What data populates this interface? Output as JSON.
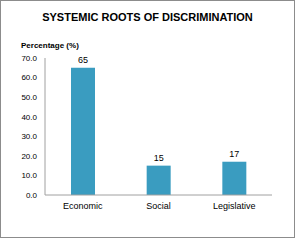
{
  "chart_data": {
    "type": "bar",
    "title": "SYSTEMIC ROOTS OF DISCRIMINATION",
    "y_label": "Percentage (%)",
    "categories": [
      "Economic",
      "Social",
      "Legislative"
    ],
    "values": [
      65,
      15,
      17
    ],
    "color": "#3a9cc0",
    "ylim": [
      0,
      70
    ],
    "yticks": [
      {
        "value": 0,
        "label": "0.0"
      },
      {
        "value": 10,
        "label": "10.0"
      },
      {
        "value": 20,
        "label": "20.0"
      },
      {
        "value": 30,
        "label": "30.0"
      },
      {
        "value": 40,
        "label": "40.0"
      },
      {
        "value": 50,
        "label": "50.0"
      },
      {
        "value": 60,
        "label": "60.0"
      },
      {
        "value": 70,
        "label": "70.0"
      }
    ],
    "data_labels": true,
    "grid": false
  }
}
